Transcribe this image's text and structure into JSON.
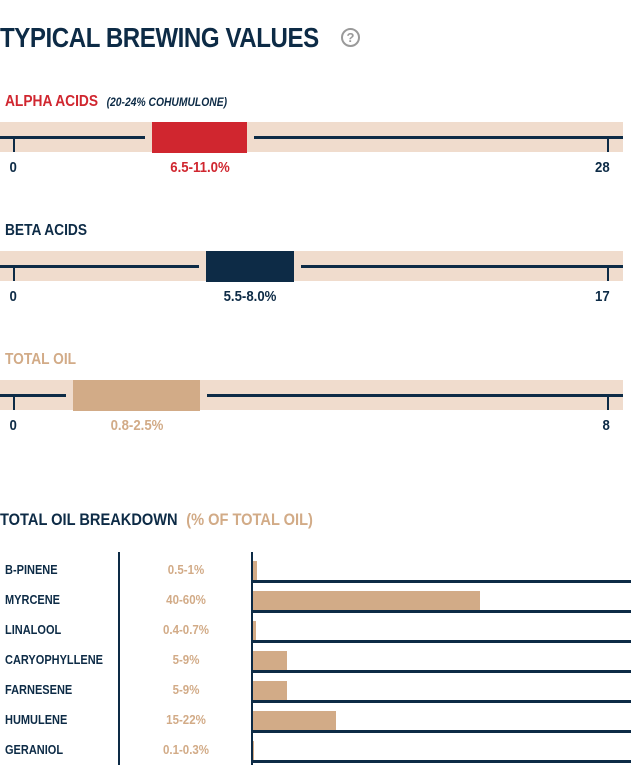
{
  "header": {
    "title": "TYPICAL BREWING VALUES",
    "help_icon": "question-circle-icon"
  },
  "colors": {
    "navy": "#0d2b46",
    "red": "#d0262f",
    "tan": "#d2ab87",
    "track": "#f0dccd"
  },
  "chart_data": [
    {
      "type": "range",
      "title": "ALPHA ACIDS",
      "subtitle": "(20-24% COHUMULONE)",
      "min": 0,
      "max": 28,
      "range": [
        6.5,
        11.0
      ],
      "range_label": "6.5-11.0%",
      "min_label": "0",
      "max_label": "28",
      "color": "#d0262f",
      "title_color": "#d0262f"
    },
    {
      "type": "range",
      "title": "BETA ACIDS",
      "subtitle": "",
      "min": 0,
      "max": 17,
      "range": [
        5.5,
        8.0
      ],
      "range_label": "5.5-8.0%",
      "min_label": "0",
      "max_label": "17",
      "color": "#0d2b46",
      "title_color": "#0d2b46"
    },
    {
      "type": "range",
      "title": "TOTAL OIL",
      "subtitle": "",
      "min": 0,
      "max": 8,
      "range": [
        0.8,
        2.5
      ],
      "range_label": "0.8-2.5%",
      "min_label": "0",
      "max_label": "8",
      "color": "#d2ab87",
      "title_color": "#d2ab87"
    },
    {
      "type": "bar",
      "title": "TOTAL OIL BREAKDOWN",
      "subtitle": "(% OF TOTAL OIL)",
      "xlim": [
        0,
        100
      ],
      "categories": [
        "B-PINENE",
        "MYRCENE",
        "LINALOOL",
        "CARYOPHYLLENE",
        "FARNESENE",
        "HUMULENE",
        "GERANIOL"
      ],
      "labels": [
        "0.5-1%",
        "40-60%",
        "0.4-0.7%",
        "5-9%",
        "5-9%",
        "15-22%",
        "0.1-0.3%"
      ],
      "values": [
        1,
        60,
        0.7,
        9,
        9,
        22,
        0.3
      ]
    }
  ]
}
